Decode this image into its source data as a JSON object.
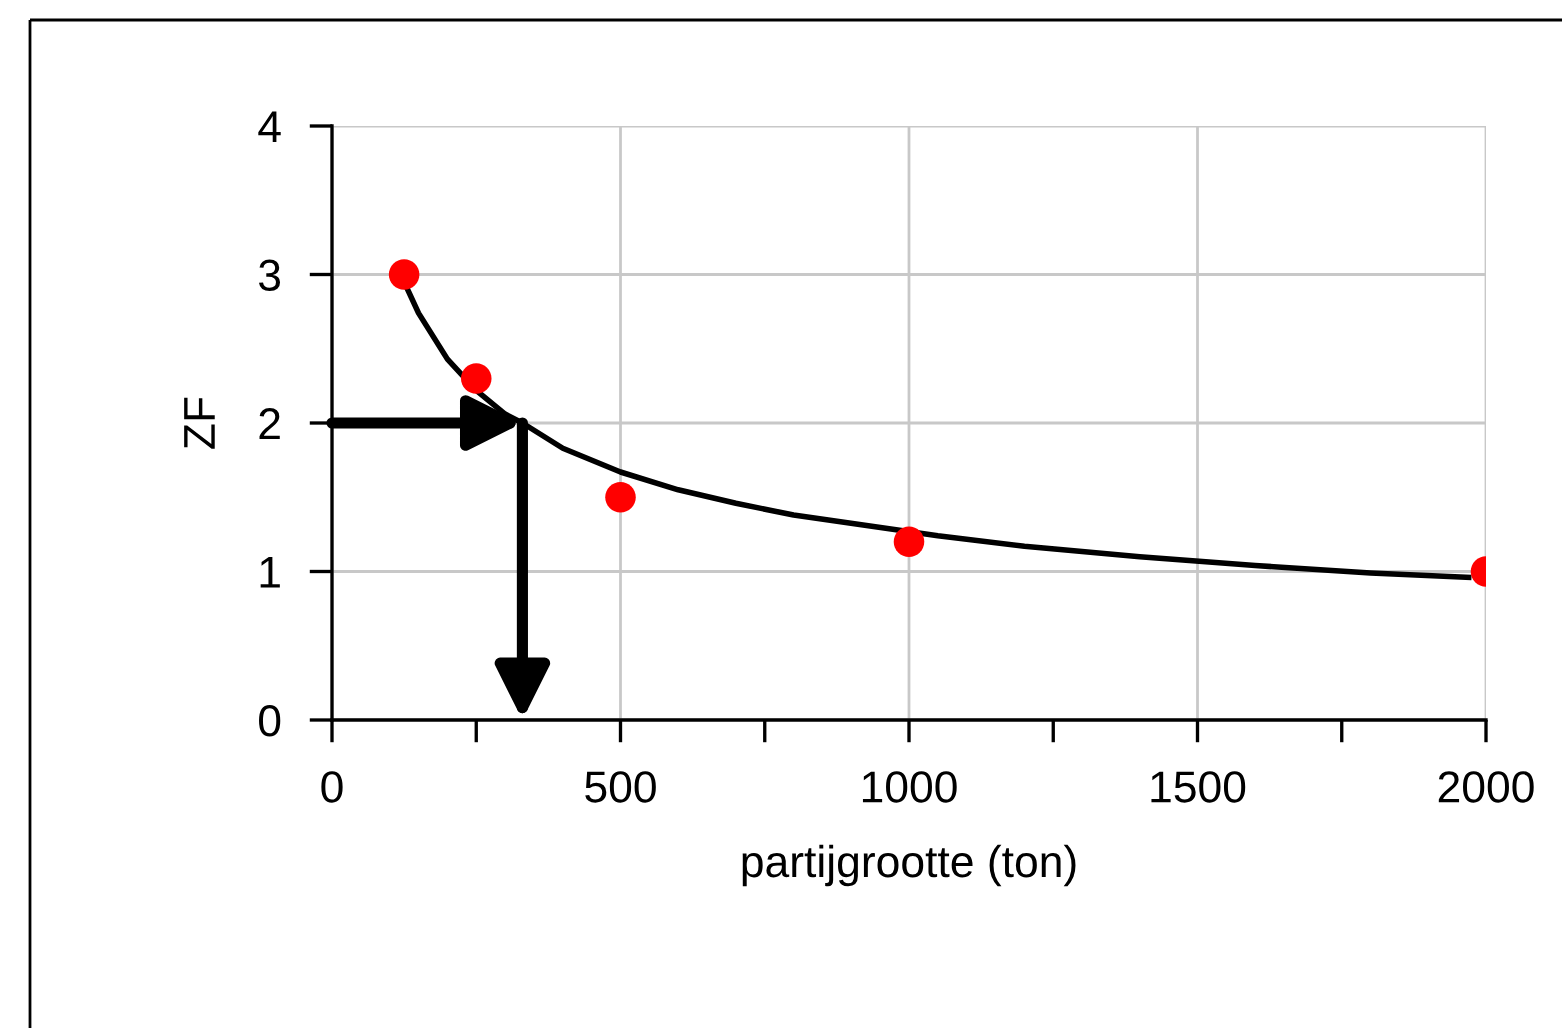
{
  "chart_data": {
    "type": "line",
    "xlabel": "partijgrootte (ton)",
    "ylabel": "ZF",
    "xlim": [
      0,
      2000
    ],
    "ylim": [
      0,
      4
    ],
    "xticks": [
      0,
      {
        "value": 250,
        "label": null
      },
      500,
      {
        "value": 750,
        "label": null
      },
      1000,
      {
        "value": 1250,
        "label": null
      },
      1500,
      {
        "value": 1750,
        "label": null
      },
      2000
    ],
    "yticks": [
      0,
      1,
      2,
      3,
      4
    ],
    "grid": true,
    "series": [
      {
        "color": "#000000",
        "marker": "none",
        "x": [
          125,
          150,
          200,
          250,
          300,
          330,
          400,
          500,
          600,
          700,
          800,
          1050,
          1200,
          1400,
          1600,
          1800,
          1970
        ],
        "values": [
          2.95,
          2.74,
          2.43,
          2.22,
          2.06,
          2.0,
          1.83,
          1.67,
          1.55,
          1.46,
          1.38,
          1.24,
          1.17,
          1.1,
          1.04,
          0.99,
          0.96
        ]
      },
      {
        "type": "scatter",
        "marker": "circle",
        "color": "#ff0000",
        "x": [
          125,
          250,
          500,
          1000,
          2000
        ],
        "values": [
          3,
          2.3,
          1.5,
          1.2,
          1.0
        ]
      }
    ]
  }
}
